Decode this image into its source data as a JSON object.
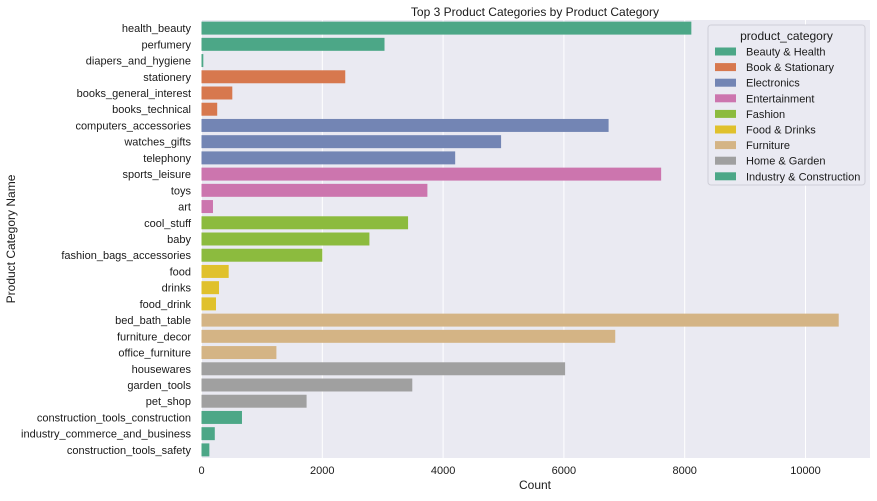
{
  "chart_data": {
    "type": "bar",
    "orientation": "horizontal",
    "title": "Top 3 Product Categories by Product Category",
    "xlabel": "Count",
    "ylabel": "Product Category Name",
    "xlim": [
      0,
      11000
    ],
    "xticks": [
      0,
      2000,
      4000,
      6000,
      8000,
      10000
    ],
    "grid": true,
    "legend_position": "top-right",
    "legend_title": "product_category",
    "groups": [
      {
        "name": "Beauty & Health",
        "color": "#4ca787"
      },
      {
        "name": "Book & Stationary",
        "color": "#d7784e"
      },
      {
        "name": "Electronics",
        "color": "#7385b4"
      },
      {
        "name": "Entertainment",
        "color": "#cc75ae"
      },
      {
        "name": "Fashion",
        "color": "#8cbb3e"
      },
      {
        "name": "Food & Drinks",
        "color": "#e0c12c"
      },
      {
        "name": "Furniture",
        "color": "#d4b485"
      },
      {
        "name": "Home & Garden",
        "color": "#a0a0a0"
      },
      {
        "name": "Industry & Construction",
        "color": "#4ca787"
      }
    ],
    "bars": [
      {
        "category": "health_beauty",
        "value": 8110,
        "group": 0
      },
      {
        "category": "perfumery",
        "value": 3030,
        "group": 0
      },
      {
        "category": "diapers_and_hygiene",
        "value": 30,
        "group": 0
      },
      {
        "category": "stationery",
        "value": 2380,
        "group": 1
      },
      {
        "category": "books_general_interest",
        "value": 510,
        "group": 1
      },
      {
        "category": "books_technical",
        "value": 260,
        "group": 1
      },
      {
        "category": "computers_accessories",
        "value": 6740,
        "group": 2
      },
      {
        "category": "watches_gifts",
        "value": 4960,
        "group": 2
      },
      {
        "category": "telephony",
        "value": 4200,
        "group": 2
      },
      {
        "category": "sports_leisure",
        "value": 7610,
        "group": 3
      },
      {
        "category": "toys",
        "value": 3740,
        "group": 3
      },
      {
        "category": "art",
        "value": 190,
        "group": 3
      },
      {
        "category": "cool_stuff",
        "value": 3420,
        "group": 4
      },
      {
        "category": "baby",
        "value": 2780,
        "group": 4
      },
      {
        "category": "fashion_bags_accessories",
        "value": 2000,
        "group": 4
      },
      {
        "category": "food",
        "value": 450,
        "group": 5
      },
      {
        "category": "drinks",
        "value": 290,
        "group": 5
      },
      {
        "category": "food_drink",
        "value": 240,
        "group": 5
      },
      {
        "category": "bed_bath_table",
        "value": 10550,
        "group": 6
      },
      {
        "category": "furniture_decor",
        "value": 6850,
        "group": 6
      },
      {
        "category": "office_furniture",
        "value": 1240,
        "group": 6
      },
      {
        "category": "housewares",
        "value": 6020,
        "group": 7
      },
      {
        "category": "garden_tools",
        "value": 3490,
        "group": 7
      },
      {
        "category": "pet_shop",
        "value": 1740,
        "group": 7
      },
      {
        "category": "construction_tools_construction",
        "value": 670,
        "group": 8
      },
      {
        "category": "industry_commerce_and_business",
        "value": 220,
        "group": 8
      },
      {
        "category": "construction_tools_safety",
        "value": 130,
        "group": 8
      }
    ]
  }
}
